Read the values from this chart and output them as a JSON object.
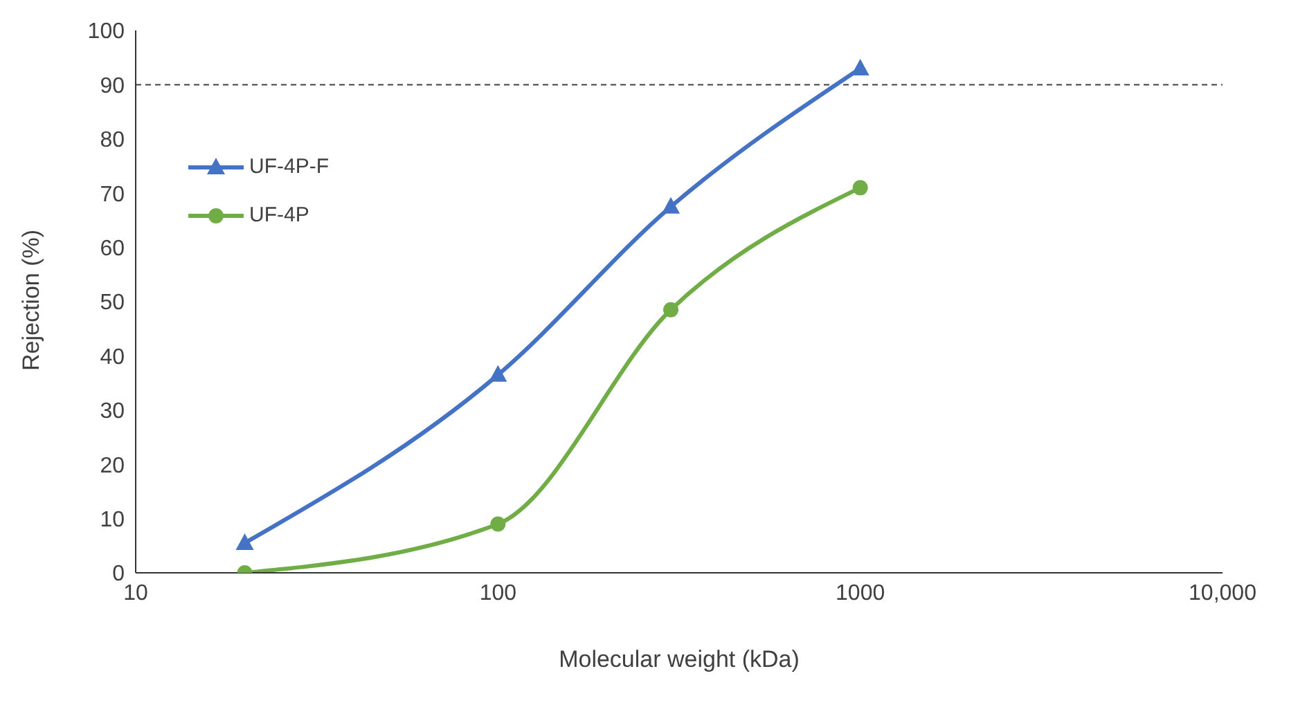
{
  "chart_data": {
    "type": "line",
    "xlabel": "Molecular weight (kDa)",
    "ylabel": "Rejection (%)",
    "log": "x",
    "xlim": [
      10,
      10000
    ],
    "xticks": [
      10,
      100,
      1000,
      {
        "value": 10000,
        "label": "10,000"
      }
    ],
    "ylim": [
      0,
      100
    ],
    "yticks": [
      0,
      10,
      20,
      30,
      40,
      50,
      60,
      70,
      80,
      90,
      100
    ],
    "grid": false,
    "legend": "top left",
    "series": [
      {
        "name": "UF-4P-F",
        "color": "#4472c4",
        "marker": "triangle",
        "x": [
          20,
          100,
          300,
          1000
        ],
        "values": [
          5.5,
          36.5,
          67.5,
          93
        ]
      },
      {
        "name": "UF-4P",
        "color": "#70ad47",
        "marker": "circle",
        "x": [
          20,
          100,
          300,
          1000
        ],
        "values": [
          0,
          9,
          48.5,
          71
        ]
      }
    ],
    "ref_lines": [
      {
        "axis": "y",
        "value": 90,
        "color": "#404040",
        "line_style": "dashed"
      }
    ]
  }
}
